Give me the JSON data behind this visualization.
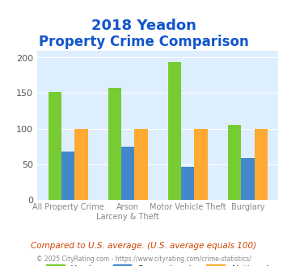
{
  "title_line1": "2018 Yeadon",
  "title_line2": "Property Crime Comparison",
  "categories": [
    "All Property Crime",
    "Arson\nLarceny & Theft",
    "Motor Vehicle Theft",
    "Burglary"
  ],
  "cat_labels_line1": [
    "All Property Crime",
    "Arson",
    "Motor Vehicle Theft",
    "Burglary"
  ],
  "cat_labels_line2": [
    "",
    "Larceny & Theft",
    "",
    ""
  ],
  "yeadon": [
    152,
    157,
    194,
    105
  ],
  "pennsylvania": [
    68,
    74,
    46,
    58
  ],
  "national": [
    100,
    100,
    100,
    100
  ],
  "color_yeadon": "#77cc33",
  "color_pennsylvania": "#4488cc",
  "color_national": "#ffaa33",
  "bg_color": "#ddeeff",
  "ylim": [
    0,
    210
  ],
  "yticks": [
    0,
    50,
    100,
    150,
    200
  ],
  "footnote": "Compared to U.S. average. (U.S. average equals 100)",
  "credit": "© 2025 CityRating.com - https://www.cityrating.com/crime-statistics/",
  "title_color": "#1155cc",
  "footnote_color": "#cc4400",
  "credit_color": "#888888"
}
